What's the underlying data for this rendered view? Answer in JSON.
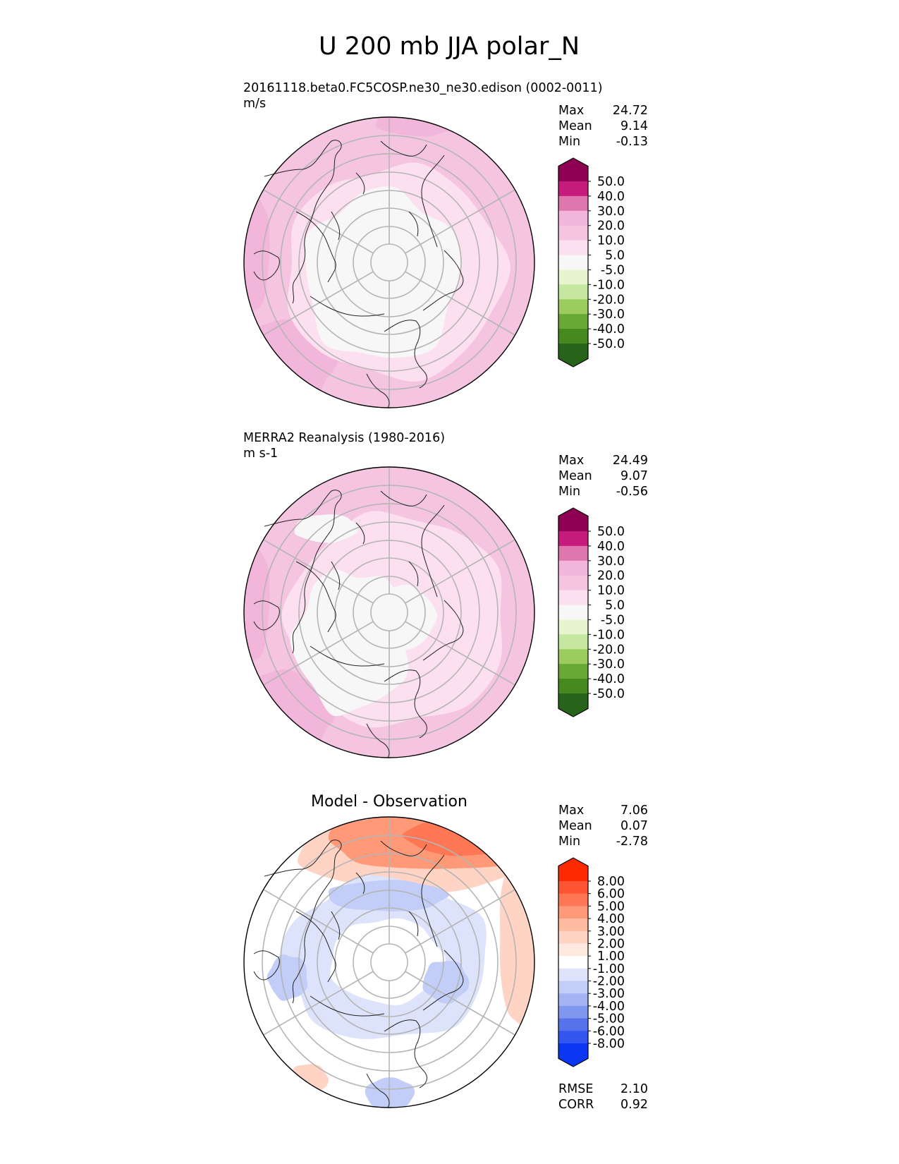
{
  "figure": {
    "title": "U 200 mb JJA polar_N"
  },
  "chart_data": [
    {
      "type": "heatmap",
      "projection": "north-polar-stereographic",
      "title": "20161118.beta0.FC5COSP.ne30_ne30.edison (0002-0011)",
      "units": "m/s",
      "stats": [
        {
          "label": "Max",
          "value": "24.72"
        },
        {
          "label": "Mean",
          "value": "9.14"
        },
        {
          "label": "Min",
          "value": "-0.13"
        }
      ],
      "colorbar": {
        "levels": [
          "50.0",
          "40.0",
          "30.0",
          "20.0",
          "10.0",
          "5.0",
          "-5.0",
          "-10.0",
          "-20.0",
          "-30.0",
          "-40.0",
          "-50.0"
        ],
        "colors": [
          "#8e0152",
          "#c51b7d",
          "#de77ae",
          "#f1b6da",
          "#f4c4e1",
          "#fde0ef",
          "#f7f7f7",
          "#e6f5d0",
          "#c5e7a0",
          "#9ccc5e",
          "#6aa835",
          "#45891f",
          "#276419"
        ],
        "extend": "both"
      },
      "fill_levels": {
        "pole": "#f7f7f7",
        "inner": "#fde0ef",
        "mid": "#f4c4e1",
        "outer_patch": "#f1b6da"
      }
    },
    {
      "type": "heatmap",
      "projection": "north-polar-stereographic",
      "title": "MERRA2 Reanalysis (1980-2016)",
      "units": "m s-1",
      "stats": [
        {
          "label": "Max",
          "value": "24.49"
        },
        {
          "label": "Mean",
          "value": "9.07"
        },
        {
          "label": "Min",
          "value": "-0.56"
        }
      ],
      "colorbar": {
        "levels": [
          "50.0",
          "40.0",
          "30.0",
          "20.0",
          "10.0",
          "5.0",
          "-5.0",
          "-10.0",
          "-20.0",
          "-30.0",
          "-40.0",
          "-50.0"
        ],
        "colors": [
          "#8e0152",
          "#c51b7d",
          "#de77ae",
          "#f1b6da",
          "#f4c4e1",
          "#fde0ef",
          "#f7f7f7",
          "#e6f5d0",
          "#c5e7a0",
          "#9ccc5e",
          "#6aa835",
          "#45891f",
          "#276419"
        ],
        "extend": "both"
      },
      "fill_levels": {
        "pole": "#f7f7f7",
        "inner": "#fde0ef",
        "mid": "#f4c4e1",
        "outer_patch": "#f1b6da"
      }
    },
    {
      "type": "heatmap",
      "projection": "north-polar-stereographic",
      "title": "Model - Observation",
      "units": "",
      "stats": [
        {
          "label": "Max",
          "value": "7.06"
        },
        {
          "label": "Mean",
          "value": "0.07"
        },
        {
          "label": "Min",
          "value": "-2.78"
        }
      ],
      "metrics": [
        {
          "label": "RMSE",
          "value": "2.10"
        },
        {
          "label": "CORR",
          "value": "0.92"
        }
      ],
      "colorbar": {
        "levels": [
          "8.00",
          "6.00",
          "5.00",
          "4.00",
          "3.00",
          "2.00",
          "1.00",
          "-1.00",
          "-2.00",
          "-3.00",
          "-4.00",
          "-5.00",
          "-6.00",
          "-8.00"
        ],
        "colors": [
          "#ff2a00",
          "#ff5533",
          "#ff7755",
          "#ff9977",
          "#ffbba0",
          "#ffd4c4",
          "#ffe8df",
          "#ffffff",
          "#dde3fb",
          "#c2cdf8",
          "#a3b3f4",
          "#8097f0",
          "#5773ec",
          "#3355f0",
          "#0b36f2"
        ],
        "extend": "both"
      },
      "fill_levels": {
        "background": "#ffffff",
        "pos_strong": "#ff7755",
        "pos_mid": "#ff9977",
        "pos_weak": "#ffd4c4",
        "neg_weak": "#dde3fb",
        "neg_mid": "#c2cdf8",
        "neg_strong": "#a3b3f4"
      }
    }
  ]
}
